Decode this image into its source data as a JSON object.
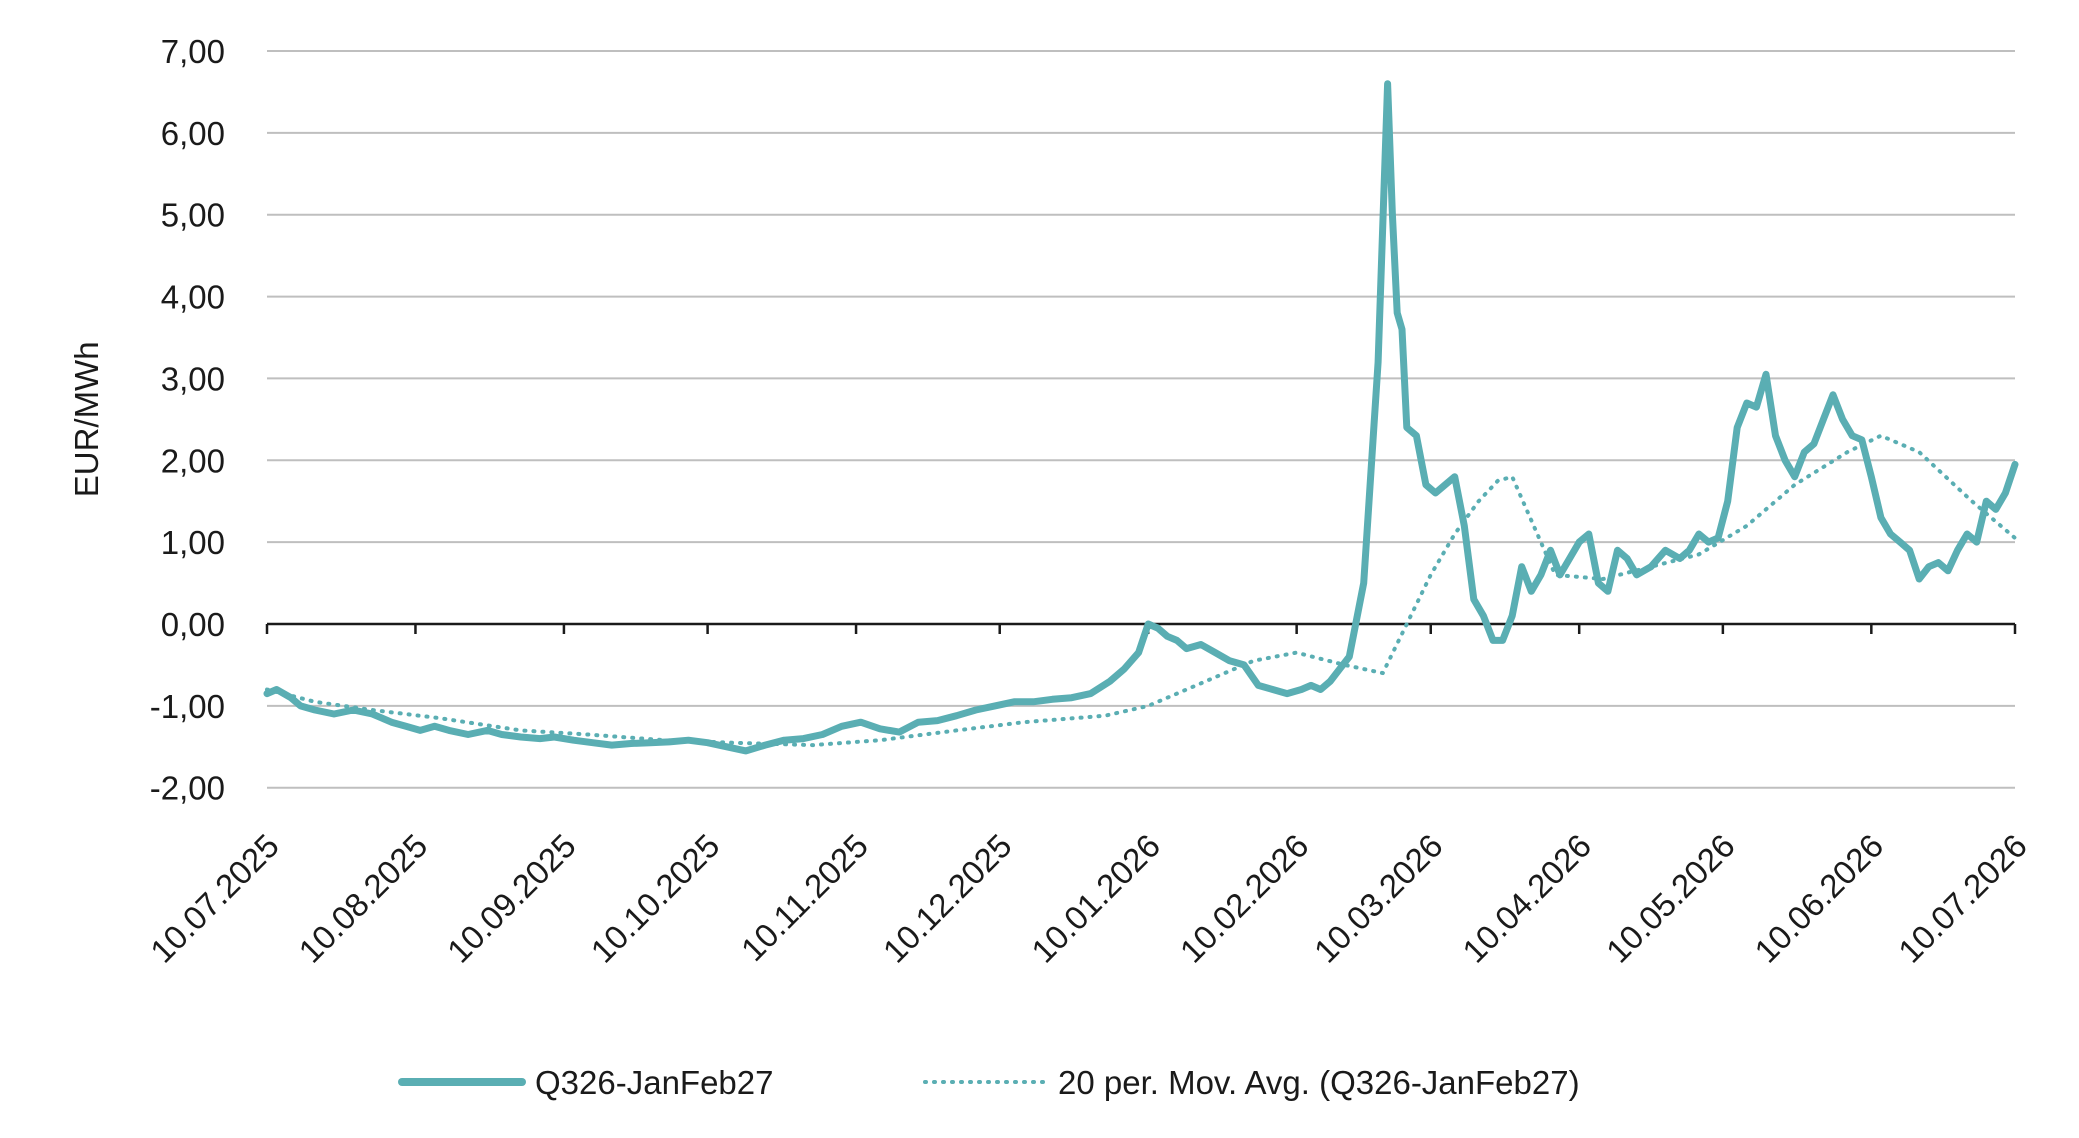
{
  "chart_data": {
    "type": "line",
    "ylabel": "EUR/MWh",
    "ylim": [
      -2,
      7
    ],
    "yticks": [
      7,
      6,
      5,
      4,
      3,
      2,
      1,
      0,
      -1,
      -2
    ],
    "ytick_labels": [
      "7,00",
      "6,00",
      "5,00",
      "4,00",
      "3,00",
      "2,00",
      "1,00",
      "0,00",
      "-1,00",
      "-2,00"
    ],
    "xlim": [
      "2025-07-10",
      "2026-07-10"
    ],
    "xticks": [
      "2025-07-10",
      "2025-08-10",
      "2025-09-10",
      "2025-10-10",
      "2025-11-10",
      "2025-12-10",
      "2026-01-10",
      "2026-02-10",
      "2026-03-10",
      "2026-04-10",
      "2026-05-10",
      "2026-06-10",
      "2026-07-10"
    ],
    "xtick_labels": [
      "10.07.2025",
      "10.08.2025",
      "10.09.2025",
      "10.10.2025",
      "10.11.2025",
      "10.12.2025",
      "10.01.2026",
      "10.02.2026",
      "10.03.2026",
      "10.04.2026",
      "10.05.2026",
      "10.06.2026",
      "10.07.2026"
    ],
    "grid": true,
    "legend_position": "bottom",
    "colors": {
      "series": "#5aaeb3",
      "grid": "#bfbfbf",
      "axis": "#1a1a1a"
    },
    "series": [
      {
        "name": "Q326-JanFeb27",
        "style": "solid",
        "x": [
          "2025-07-10",
          "2025-07-12",
          "2025-07-15",
          "2025-07-17",
          "2025-07-20",
          "2025-07-24",
          "2025-07-28",
          "2025-08-01",
          "2025-08-05",
          "2025-08-08",
          "2025-08-11",
          "2025-08-14",
          "2025-08-17",
          "2025-08-21",
          "2025-08-25",
          "2025-08-28",
          "2025-09-01",
          "2025-09-05",
          "2025-09-08",
          "2025-09-12",
          "2025-09-16",
          "2025-09-20",
          "2025-09-24",
          "2025-09-28",
          "2025-10-02",
          "2025-10-06",
          "2025-10-10",
          "2025-10-14",
          "2025-10-18",
          "2025-10-22",
          "2025-10-26",
          "2025-10-30",
          "2025-11-03",
          "2025-11-07",
          "2025-11-11",
          "2025-11-15",
          "2025-11-19",
          "2025-11-23",
          "2025-11-27",
          "2025-12-01",
          "2025-12-05",
          "2025-12-09",
          "2025-12-13",
          "2025-12-17",
          "2025-12-21",
          "2025-12-25",
          "2025-12-29",
          "2026-01-02",
          "2026-01-05",
          "2026-01-08",
          "2026-01-10",
          "2026-01-12",
          "2026-01-14",
          "2026-01-16",
          "2026-01-18",
          "2026-01-21",
          "2026-01-24",
          "2026-01-27",
          "2026-01-30",
          "2026-02-02",
          "2026-02-05",
          "2026-02-08",
          "2026-02-11",
          "2026-02-13",
          "2026-02-15",
          "2026-02-17",
          "2026-02-19",
          "2026-02-21",
          "2026-02-24",
          "2026-02-27",
          "2026-03-01",
          "2026-03-02",
          "2026-03-03",
          "2026-03-04",
          "2026-03-05",
          "2026-03-07",
          "2026-03-09",
          "2026-03-11",
          "2026-03-13",
          "2026-03-15",
          "2026-03-17",
          "2026-03-19",
          "2026-03-21",
          "2026-03-23",
          "2026-03-25",
          "2026-03-27",
          "2026-03-29",
          "2026-03-31",
          "2026-04-02",
          "2026-04-04",
          "2026-04-06",
          "2026-04-08",
          "2026-04-10",
          "2026-04-12",
          "2026-04-14",
          "2026-04-16",
          "2026-04-18",
          "2026-04-20",
          "2026-04-22",
          "2026-04-25",
          "2026-04-28",
          "2026-05-01",
          "2026-05-03",
          "2026-05-05",
          "2026-05-07",
          "2026-05-09",
          "2026-05-11",
          "2026-05-13",
          "2026-05-15",
          "2026-05-17",
          "2026-05-19",
          "2026-05-21",
          "2026-05-23",
          "2026-05-25",
          "2026-05-27",
          "2026-05-29",
          "2026-05-31",
          "2026-06-02",
          "2026-06-04",
          "2026-06-06",
          "2026-06-08",
          "2026-06-10",
          "2026-06-12",
          "2026-06-14",
          "2026-06-16",
          "2026-06-18",
          "2026-06-20",
          "2026-06-22",
          "2026-06-24",
          "2026-06-26",
          "2026-06-28",
          "2026-06-30",
          "2026-07-02",
          "2026-07-04",
          "2026-07-06",
          "2026-07-08",
          "2026-07-10"
        ],
        "values": [
          -0.85,
          -0.8,
          -0.9,
          -1.0,
          -1.05,
          -1.1,
          -1.05,
          -1.1,
          -1.2,
          -1.25,
          -1.3,
          -1.25,
          -1.3,
          -1.35,
          -1.3,
          -1.35,
          -1.38,
          -1.4,
          -1.38,
          -1.42,
          -1.45,
          -1.48,
          -1.46,
          -1.45,
          -1.44,
          -1.42,
          -1.45,
          -1.5,
          -1.55,
          -1.48,
          -1.42,
          -1.4,
          -1.35,
          -1.25,
          -1.2,
          -1.28,
          -1.32,
          -1.2,
          -1.18,
          -1.12,
          -1.05,
          -1.0,
          -0.95,
          -0.95,
          -0.92,
          -0.9,
          -0.85,
          -0.7,
          -0.55,
          -0.35,
          0.0,
          -0.05,
          -0.15,
          -0.2,
          -0.3,
          -0.25,
          -0.35,
          -0.45,
          -0.5,
          -0.75,
          -0.8,
          -0.85,
          -0.8,
          -0.75,
          -0.8,
          -0.7,
          -0.55,
          -0.4,
          0.5,
          3.2,
          6.6,
          5.0,
          3.8,
          3.6,
          2.4,
          2.3,
          1.7,
          1.6,
          1.7,
          1.8,
          1.2,
          0.3,
          0.1,
          -0.2,
          -0.2,
          0.1,
          0.7,
          0.4,
          0.6,
          0.9,
          0.6,
          0.8,
          1.0,
          1.1,
          0.5,
          0.4,
          0.9,
          0.8,
          0.6,
          0.7,
          0.9,
          0.8,
          0.9,
          1.1,
          1.0,
          1.05,
          1.5,
          2.4,
          2.7,
          2.65,
          3.05,
          2.3,
          2.0,
          1.8,
          2.1,
          2.2,
          2.5,
          2.8,
          2.5,
          2.3,
          2.25,
          1.8,
          1.3,
          1.1,
          1.0,
          0.9,
          0.55,
          0.7,
          0.75,
          0.65,
          0.9,
          1.1,
          1.0,
          1.5,
          1.4,
          1.6,
          1.95
        ]
      },
      {
        "name": "20 per. Mov. Avg. (Q326-JanFeb27)",
        "style": "dotted",
        "x": [
          "2025-07-10",
          "2025-07-20",
          "2025-08-01",
          "2025-08-15",
          "2025-09-01",
          "2025-09-15",
          "2025-10-01",
          "2025-10-15",
          "2025-11-01",
          "2025-11-15",
          "2025-12-01",
          "2025-12-15",
          "2026-01-01",
          "2026-01-10",
          "2026-01-20",
          "2026-02-01",
          "2026-02-10",
          "2026-02-20",
          "2026-02-28",
          "2026-03-05",
          "2026-03-10",
          "2026-03-15",
          "2026-03-20",
          "2026-03-24",
          "2026-03-27",
          "2026-03-30",
          "2026-04-05",
          "2026-04-15",
          "2026-04-25",
          "2026-05-05",
          "2026-05-15",
          "2026-05-25",
          "2026-06-05",
          "2026-06-12",
          "2026-06-20",
          "2026-07-01",
          "2026-07-10"
        ],
        "values": [
          -0.8,
          -0.95,
          -1.05,
          -1.15,
          -1.3,
          -1.35,
          -1.42,
          -1.45,
          -1.48,
          -1.42,
          -1.3,
          -1.2,
          -1.12,
          -1.0,
          -0.75,
          -0.45,
          -0.35,
          -0.5,
          -0.6,
          0.0,
          0.6,
          1.1,
          1.5,
          1.75,
          1.8,
          1.4,
          0.6,
          0.55,
          0.7,
          0.85,
          1.2,
          1.7,
          2.1,
          2.3,
          2.1,
          1.5,
          1.05
        ]
      }
    ]
  }
}
